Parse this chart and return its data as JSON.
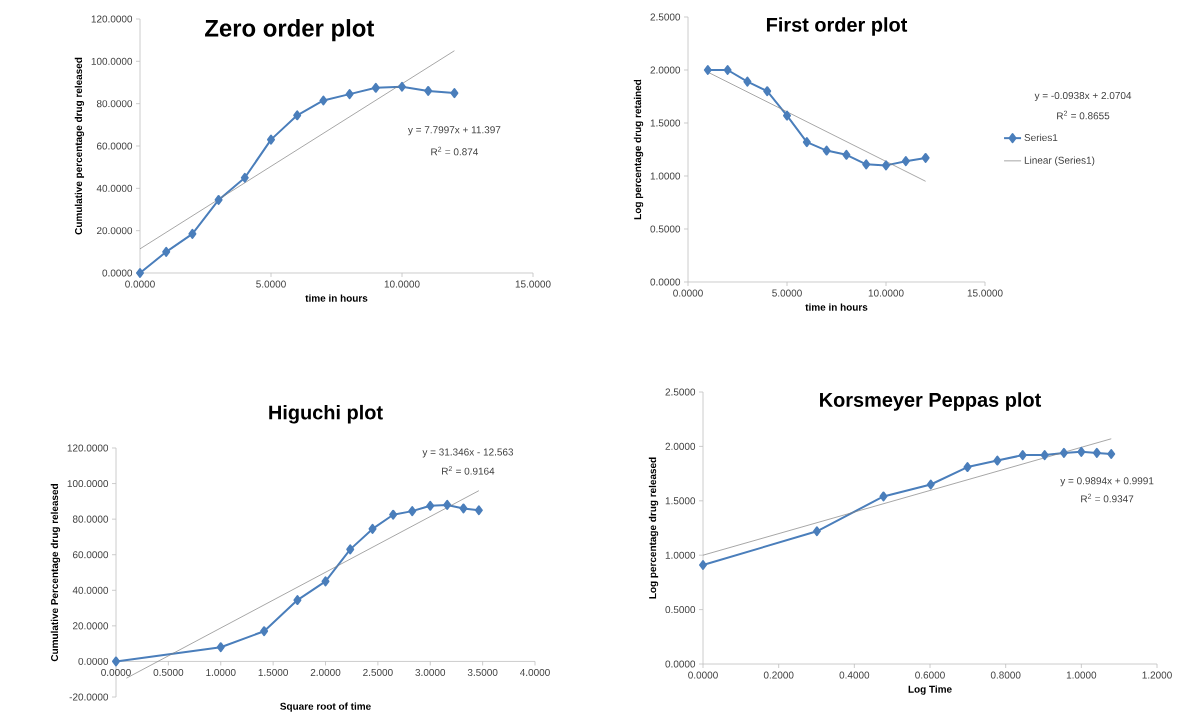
{
  "chart_data": [
    {
      "type": "line",
      "title": "Zero order plot",
      "xlabel": "time in hours",
      "ylabel": "Cumulative percentage drug released",
      "xlim": [
        0,
        15
      ],
      "ylim": [
        0,
        120
      ],
      "xticks": [
        {
          "value": 0,
          "label": "0.0000"
        },
        {
          "value": 5,
          "label": "5.0000"
        },
        {
          "value": 10,
          "label": "10.0000"
        },
        {
          "value": 15,
          "label": "15.0000"
        }
      ],
      "yticks": [
        {
          "value": 0,
          "label": "0.0000"
        },
        {
          "value": 20,
          "label": "20.0000"
        },
        {
          "value": 40,
          "label": "40.0000"
        },
        {
          "value": 60,
          "label": "60.0000"
        },
        {
          "value": 80,
          "label": "80.0000"
        },
        {
          "value": 100,
          "label": "100.0000"
        },
        {
          "value": 120,
          "label": "120.0000"
        }
      ],
      "marker": "diamond",
      "line_style": "solid",
      "grid": false,
      "legend": false,
      "series": [
        {
          "color": "#4a7ebb",
          "x": [
            0,
            1,
            2,
            3,
            4,
            5,
            6,
            7,
            8,
            9,
            10,
            11,
            12
          ],
          "values": [
            0,
            10,
            18.5,
            34.5,
            45,
            63,
            74.5,
            81.5,
            84.5,
            87.5,
            88,
            86,
            85
          ]
        },
        {
          "type": "line",
          "marker": "none",
          "color": "#808080",
          "x": [
            0,
            12
          ],
          "values": [
            11.4,
            105.0
          ]
        }
      ],
      "annotations": [
        "y = 7.7997x + 11.397",
        "R$^{2}$ = 0.874"
      ]
    },
    {
      "type": "line",
      "title": "First order plot",
      "xlabel": "time in hours",
      "ylabel": "Log percentage drug retained",
      "xlim": [
        0,
        15
      ],
      "ylim": [
        0,
        2.5
      ],
      "xticks": [
        {
          "value": 0,
          "label": "0.0000"
        },
        {
          "value": 5,
          "label": "5.0000"
        },
        {
          "value": 10,
          "label": "10.0000"
        },
        {
          "value": 15,
          "label": "15.0000"
        }
      ],
      "yticks": [
        {
          "value": 0,
          "label": "0.0000"
        },
        {
          "value": 0.5,
          "label": "0.5000"
        },
        {
          "value": 1,
          "label": "1.0000"
        },
        {
          "value": 1.5,
          "label": "1.5000"
        },
        {
          "value": 2,
          "label": "2.0000"
        },
        {
          "value": 2.5,
          "label": "2.5000"
        }
      ],
      "marker": "diamond",
      "line_style": "solid",
      "grid": false,
      "legend": "right",
      "series": [
        {
          "name": "Series1",
          "color": "#4a7ebb",
          "x": [
            1,
            2,
            3,
            4,
            5,
            6,
            7,
            8,
            9,
            10,
            11,
            12
          ],
          "values": [
            2.0,
            2.0,
            1.89,
            1.8,
            1.57,
            1.32,
            1.24,
            1.2,
            1.11,
            1.1,
            1.14,
            1.17
          ]
        },
        {
          "name": "Linear (Series1)",
          "type": "line",
          "marker": "none",
          "color": "#808080",
          "x": [
            1,
            12
          ],
          "values": [
            1.98,
            0.95
          ]
        }
      ],
      "annotations": [
        "y = -0.0938x + 2.0704",
        "R$^{2}$ = 0.8655"
      ]
    },
    {
      "type": "line",
      "title": "Higuchi plot",
      "xlabel": "Square root of time",
      "ylabel": "Cumulative Percentage drug released",
      "xlim": [
        0,
        4
      ],
      "ylim": [
        -20,
        120
      ],
      "xticks": [
        {
          "value": 0,
          "label": "0.0000"
        },
        {
          "value": 0.5,
          "label": "0.5000"
        },
        {
          "value": 1,
          "label": "1.0000"
        },
        {
          "value": 1.5,
          "label": "1.5000"
        },
        {
          "value": 2,
          "label": "2.0000"
        },
        {
          "value": 2.5,
          "label": "2.5000"
        },
        {
          "value": 3,
          "label": "3.0000"
        },
        {
          "value": 3.5,
          "label": "3.5000"
        },
        {
          "value": 4,
          "label": "4.0000"
        }
      ],
      "yticks": [
        {
          "value": -20,
          "label": "-20.0000"
        },
        {
          "value": 0,
          "label": "0.0000"
        },
        {
          "value": 20,
          "label": "20.0000"
        },
        {
          "value": 40,
          "label": "40.0000"
        },
        {
          "value": 60,
          "label": "60.0000"
        },
        {
          "value": 80,
          "label": "80.0000"
        },
        {
          "value": 100,
          "label": "100.0000"
        },
        {
          "value": 120,
          "label": "120.0000"
        }
      ],
      "marker": "diamond",
      "line_style": "solid",
      "grid": false,
      "legend": false,
      "series": [
        {
          "color": "#4a7ebb",
          "x": [
            0,
            1,
            1.414,
            1.732,
            2,
            2.236,
            2.449,
            2.646,
            2.828,
            3,
            3.162,
            3.317,
            3.464
          ],
          "values": [
            0,
            8,
            17,
            34.5,
            45,
            63,
            74.5,
            82.5,
            84.5,
            87.5,
            88,
            86,
            85
          ]
        },
        {
          "type": "line",
          "marker": "none",
          "color": "#808080",
          "x": [
            0.1,
            3.464
          ],
          "values": [
            -9.4,
            96.0
          ]
        }
      ],
      "annotations": [
        "y = 31.346x - 12.563",
        "R$^{2}$ = 0.9164"
      ]
    },
    {
      "type": "line",
      "title": "Korsmeyer Peppas plot",
      "xlabel": "Log Time",
      "ylabel": "Log percentage drug released",
      "xlim": [
        0,
        1.2
      ],
      "ylim": [
        0,
        2.5
      ],
      "xticks": [
        {
          "value": 0,
          "label": "0.0000"
        },
        {
          "value": 0.2,
          "label": "0.2000"
        },
        {
          "value": 0.4,
          "label": "0.4000"
        },
        {
          "value": 0.6,
          "label": "0.6000"
        },
        {
          "value": 0.8,
          "label": "0.8000"
        },
        {
          "value": 1,
          "label": "1.0000"
        },
        {
          "value": 1.2,
          "label": "1.2000"
        }
      ],
      "yticks": [
        {
          "value": 0,
          "label": "0.0000"
        },
        {
          "value": 0.5,
          "label": "0.5000"
        },
        {
          "value": 1,
          "label": "1.0000"
        },
        {
          "value": 1.5,
          "label": "1.5000"
        },
        {
          "value": 2,
          "label": "2.0000"
        },
        {
          "value": 2.5,
          "label": "2.5000"
        }
      ],
      "marker": "diamond",
      "line_style": "solid",
      "grid": false,
      "legend": false,
      "series": [
        {
          "color": "#4a7ebb",
          "x": [
            0,
            0.301,
            0.477,
            0.602,
            0.699,
            0.778,
            0.845,
            0.903,
            0.954,
            1.0,
            1.041,
            1.079
          ],
          "values": [
            0.91,
            1.22,
            1.54,
            1.65,
            1.81,
            1.87,
            1.92,
            1.92,
            1.94,
            1.95,
            1.94,
            1.93
          ]
        },
        {
          "type": "line",
          "marker": "none",
          "color": "#808080",
          "x": [
            0,
            1.079
          ],
          "values": [
            1.0,
            2.07
          ]
        }
      ],
      "annotations": [
        "y = 0.9894x + 0.9991",
        "R$^{2}$ = 0.9347"
      ]
    }
  ]
}
